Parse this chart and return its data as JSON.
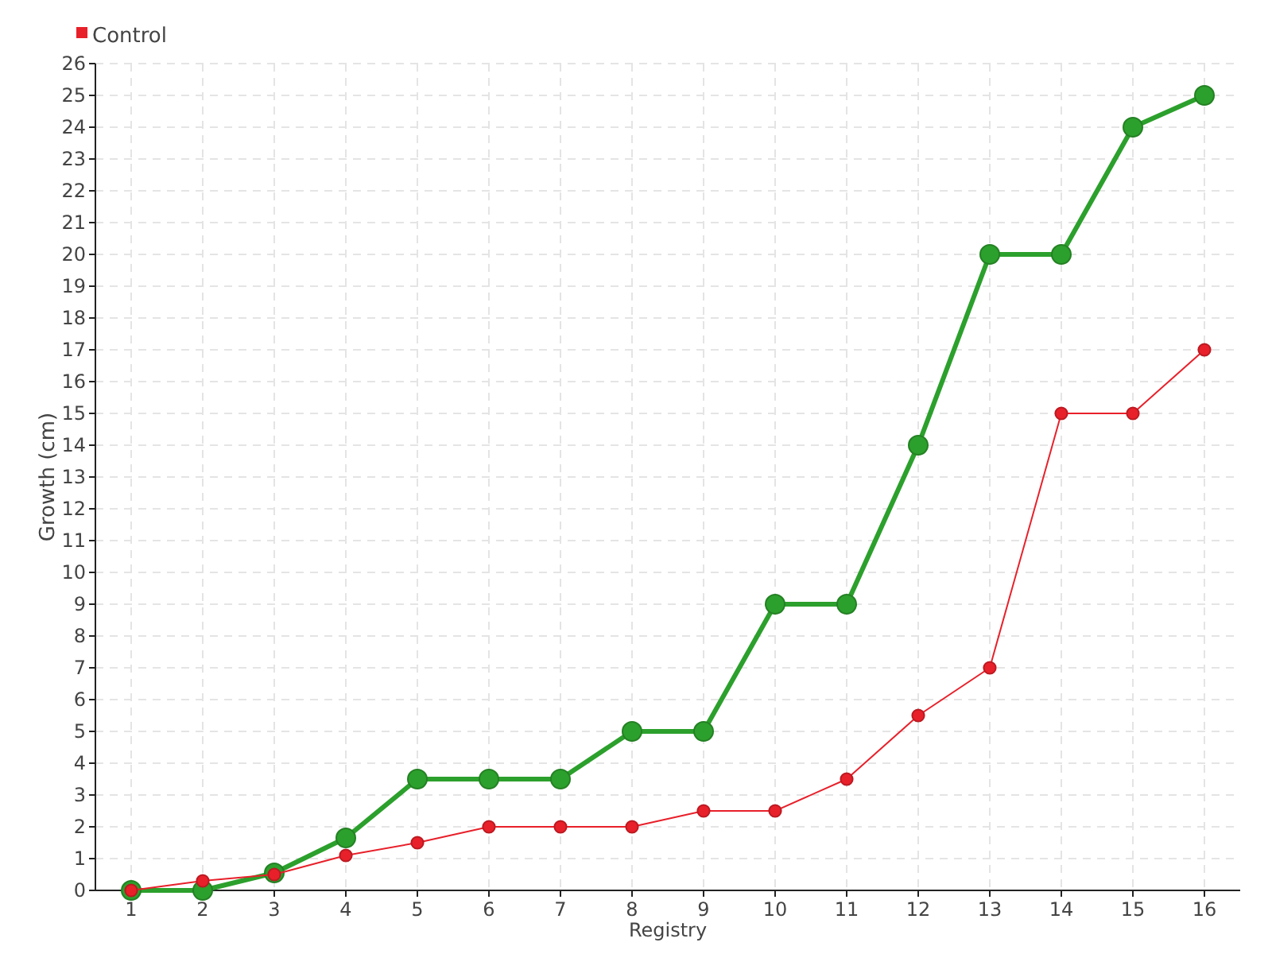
{
  "chart_data": {
    "type": "line",
    "xlabel": "Registry",
    "ylabel": "Growth (cm)",
    "x": [
      1,
      2,
      3,
      4,
      5,
      6,
      7,
      8,
      9,
      10,
      11,
      12,
      13,
      14,
      15,
      16
    ],
    "xlim": [
      0.5,
      16.5
    ],
    "xticks": [
      1,
      2,
      3,
      4,
      5,
      6,
      7,
      8,
      9,
      10,
      11,
      12,
      13,
      14,
      15,
      16
    ],
    "ylim": [
      0,
      26
    ],
    "yticks": [
      0,
      1,
      2,
      3,
      4,
      5,
      6,
      7,
      8,
      9,
      10,
      11,
      12,
      13,
      14,
      15,
      16,
      17,
      18,
      19,
      20,
      21,
      22,
      23,
      24,
      25,
      26
    ],
    "grid": true,
    "legend": "top left",
    "marker": "circle",
    "line_style": "solid",
    "series": [
      {
        "color": "#2ca02c",
        "values": [
          0,
          0,
          0.55,
          1.65,
          3.5,
          3.5,
          3.5,
          5,
          5,
          9,
          9,
          14,
          20,
          20,
          24,
          25
        ]
      },
      {
        "name": "Control",
        "color": "#e8202a",
        "values": [
          0,
          0.3,
          0.5,
          1.1,
          1.5,
          2,
          2,
          2,
          2.5,
          2.5,
          3.5,
          5.5,
          7,
          15,
          15,
          17
        ]
      }
    ]
  }
}
